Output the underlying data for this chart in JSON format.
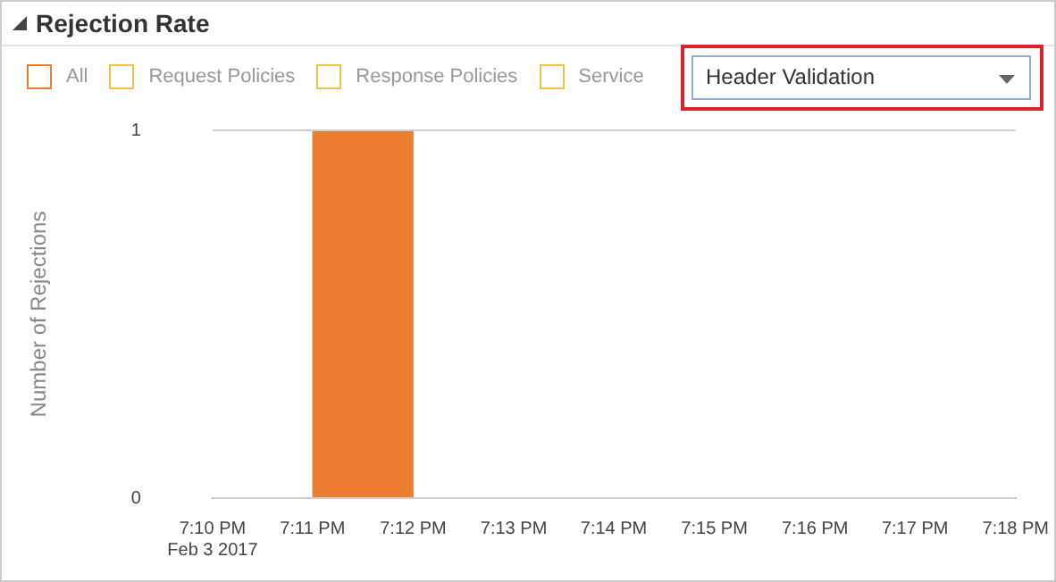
{
  "chart_data": {
    "type": "histogram",
    "title": "Rejection Rate",
    "ylabel": "Number of Rejections",
    "bins": [
      19.1667,
      19.1833,
      19.2,
      19.2167,
      19.2333,
      19.25,
      19.2667,
      19.2833,
      19.3
    ],
    "series": [
      {
        "name": "All",
        "color": "#ed7d31",
        "values": [
          0,
          1,
          0,
          0,
          0,
          0,
          0,
          0
        ]
      }
    ],
    "xlim": [
      19.1667,
      19.3
    ],
    "xticks": [
      {
        "value": 19.1667,
        "label": "7:10 PM\nFeb 3 2017"
      },
      {
        "value": 19.1833,
        "label": "7:11 PM"
      },
      {
        "value": 19.2,
        "label": "7:12 PM"
      },
      {
        "value": 19.2167,
        "label": "7:13 PM"
      },
      {
        "value": 19.2333,
        "label": "7:14 PM"
      },
      {
        "value": 19.25,
        "label": "7:15 PM"
      },
      {
        "value": 19.2667,
        "label": "7:16 PM"
      },
      {
        "value": 19.2833,
        "label": "7:17 PM"
      },
      {
        "value": 19.3,
        "label": "7:18 PM"
      }
    ],
    "ylim": [
      0,
      1
    ],
    "yticks": [
      0,
      1
    ],
    "grid": "y",
    "legend": "top left",
    "annotations": [
      "Request Policies",
      "Response Policies",
      "Service",
      "Header Validation"
    ]
  }
}
